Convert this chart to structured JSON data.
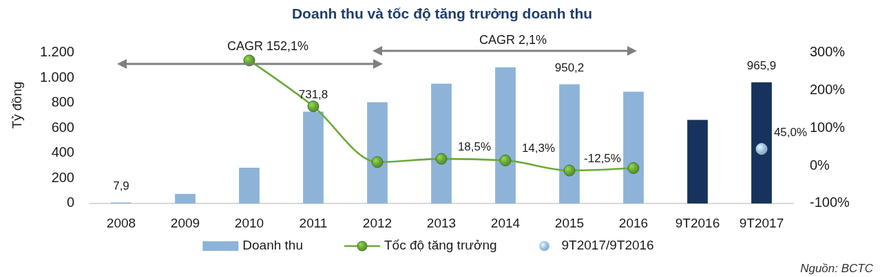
{
  "chart_data": {
    "type": "bar",
    "title": "Doanh thu và tốc độ tăng trưởng doanh thu",
    "ylabel": "Tỷ đồng",
    "categories": [
      "2008",
      "2009",
      "2010",
      "2011",
      "2012",
      "2013",
      "2014",
      "2015",
      "2016",
      "9T2016",
      "9T2017"
    ],
    "series": [
      {
        "name": "Doanh thu",
        "type": "bar",
        "color": "#8db4d8",
        "colors": [
          "#8db4d8",
          "#8db4d8",
          "#8db4d8",
          "#8db4d8",
          "#8db4d8",
          "#8db4d8",
          "#8db4d8",
          "#8db4d8",
          "#8db4d8",
          "#17325c",
          "#17325c"
        ],
        "values": [
          7.9,
          76,
          285,
          731.8,
          807,
          955,
          1085,
          950.2,
          891,
          666,
          965.9
        ],
        "value_labels": [
          "7,9",
          null,
          null,
          "731,8",
          null,
          null,
          null,
          "950,2",
          null,
          null,
          "965,9"
        ]
      },
      {
        "name": "Tốc độ tăng trưởng",
        "type": "line",
        "axis": "y2",
        "color": "#6aaa3a",
        "values": [
          null,
          null,
          280,
          158,
          10,
          18.5,
          14.3,
          -12.5,
          -6,
          null,
          null
        ],
        "value_labels": [
          null,
          null,
          null,
          null,
          null,
          "18,5%",
          "14,3%",
          "-12,5%",
          null,
          null,
          null
        ]
      },
      {
        "name": "9T2017/9T2016",
        "type": "scatter",
        "axis": "y2",
        "color": "#a6c8e6",
        "values": [
          null,
          null,
          null,
          null,
          null,
          null,
          null,
          null,
          null,
          null,
          45.0
        ],
        "value_labels": [
          null,
          null,
          null,
          null,
          null,
          null,
          null,
          null,
          null,
          null,
          "45,0%"
        ]
      }
    ],
    "ylim": [
      0,
      1200
    ],
    "yticks": [
      0,
      200,
      400,
      600,
      800,
      {
        "value": 1000,
        "label": "1.000"
      },
      {
        "value": 1200,
        "label": "1.200"
      }
    ],
    "y2lim": [
      -100,
      300
    ],
    "y2ticks": [
      {
        "value": -100,
        "label": "-100%"
      },
      {
        "value": 0,
        "label": "0%"
      },
      {
        "value": 100,
        "label": "100%"
      },
      {
        "value": 200,
        "label": "200%"
      },
      {
        "value": 300,
        "label": "300%"
      }
    ],
    "marker": "circle",
    "legend": "bottom",
    "annotations": [
      "CAGR 152,1%",
      "CAGR 2,1%",
      "Nguồn: BCTC"
    ]
  }
}
